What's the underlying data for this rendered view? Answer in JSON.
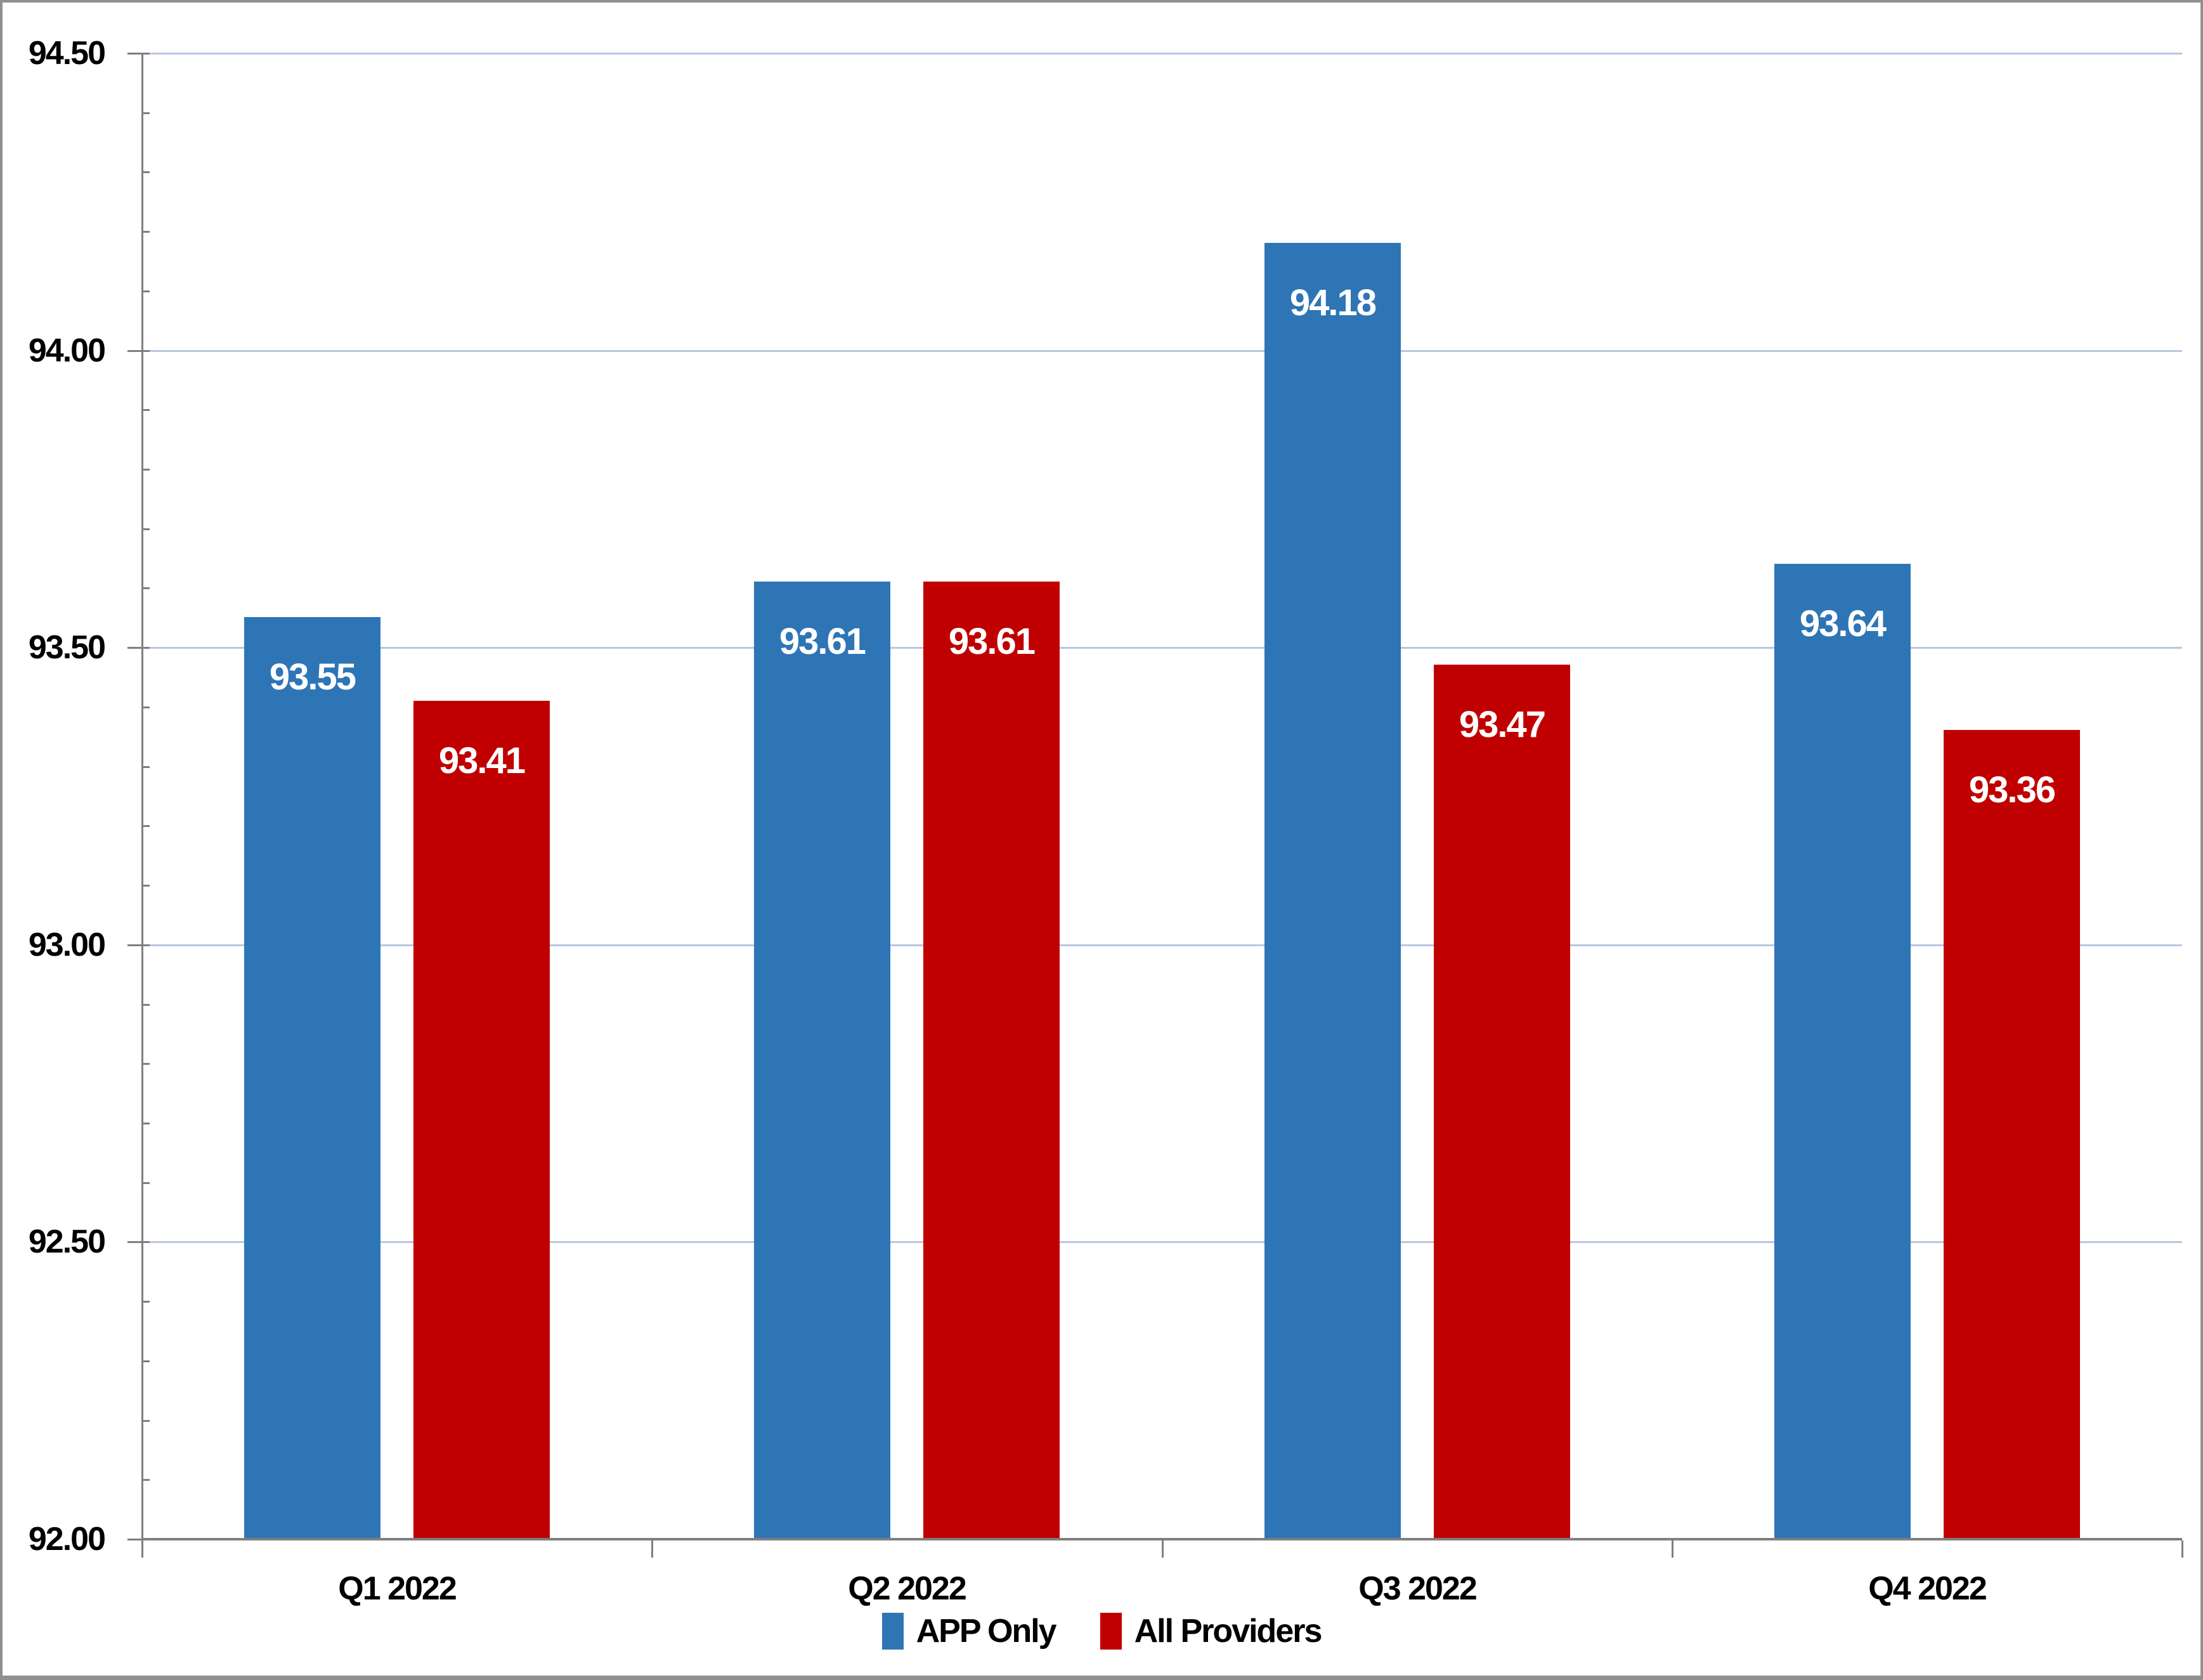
{
  "chart_data": {
    "type": "bar",
    "title": "",
    "xlabel": "",
    "ylabel": "",
    "categories": [
      "Q1 2022",
      "Q2 2022",
      "Q3 2022",
      "Q4 2022"
    ],
    "series": [
      {
        "name": "APP Only",
        "color": "#2E75B6",
        "values": [
          93.55,
          93.61,
          94.18,
          93.64
        ],
        "labels": [
          "93.55",
          "93.61",
          "94.18",
          "93.64"
        ]
      },
      {
        "name": "All Providers",
        "color": "#C00000",
        "values": [
          93.41,
          93.61,
          93.47,
          93.36
        ],
        "labels": [
          "93.41",
          "93.61",
          "93.47",
          "93.36"
        ]
      }
    ],
    "y_axis": {
      "min": 92.0,
      "max": 94.5,
      "major_step": 0.5,
      "minor_step": 0.1,
      "tick_labels": [
        "94.50",
        "94.00",
        "93.50",
        "93.00",
        "92.50",
        "92.00"
      ]
    },
    "ylim": [
      92.0,
      94.5
    ],
    "grid": true,
    "legend_position": "bottom",
    "data_labels_position": "inside-end",
    "colors": {
      "gridline": "#B8C7E2",
      "axis": "#7F7F7F",
      "data_label_text": "#FFFFFF",
      "frame_border": "#909090"
    }
  }
}
